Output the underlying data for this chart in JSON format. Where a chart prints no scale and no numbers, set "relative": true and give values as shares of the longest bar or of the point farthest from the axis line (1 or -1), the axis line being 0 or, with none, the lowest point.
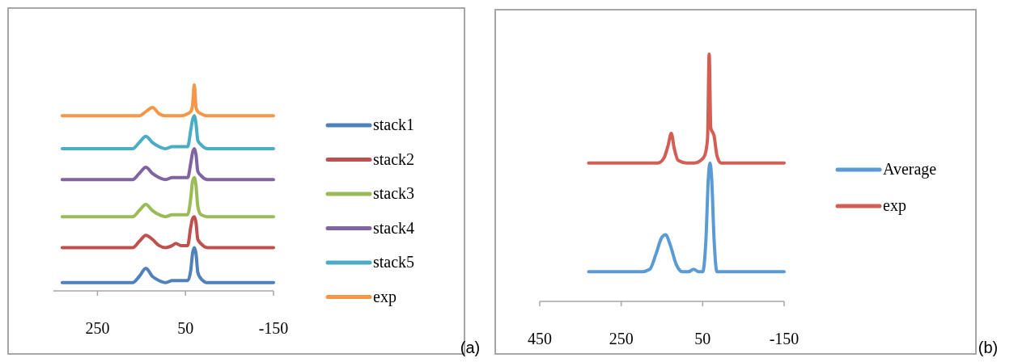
{
  "chart_data": [
    {
      "type": "line",
      "relative": true,
      "x": [
        330,
        200,
        170,
        155,
        140,
        125,
        110,
        95,
        80,
        72,
        60,
        45,
        38,
        34,
        30,
        26,
        22,
        15,
        0,
        -150
      ],
      "xlim": [
        350,
        -150
      ],
      "xticks": [
        250,
        50,
        -150
      ],
      "legend": "right",
      "annotations": [
        "(a)"
      ],
      "series": [
        {
          "name": "stack1",
          "color": "#4f81bd",
          "values": [
            0.04,
            0.04,
            0.04,
            0.07,
            0.11,
            0.07,
            0.05,
            0.04,
            0.05,
            0.05,
            0.05,
            0.05,
            0.1,
            0.18,
            0.21,
            0.18,
            0.09,
            0.06,
            0.04,
            0.04
          ]
        },
        {
          "name": "stack2",
          "color": "#c0504d",
          "values": [
            0.21,
            0.21,
            0.21,
            0.24,
            0.27,
            0.25,
            0.22,
            0.21,
            0.22,
            0.23,
            0.22,
            0.22,
            0.31,
            0.35,
            0.36,
            0.33,
            0.25,
            0.23,
            0.21,
            0.21
          ]
        },
        {
          "name": "stack3",
          "color": "#9bbb59",
          "values": [
            0.36,
            0.36,
            0.36,
            0.39,
            0.42,
            0.39,
            0.37,
            0.36,
            0.37,
            0.37,
            0.37,
            0.37,
            0.45,
            0.53,
            0.55,
            0.51,
            0.41,
            0.37,
            0.36,
            0.36
          ]
        },
        {
          "name": "stack4",
          "color": "#8064a2",
          "values": [
            0.54,
            0.54,
            0.54,
            0.57,
            0.6,
            0.57,
            0.55,
            0.54,
            0.55,
            0.55,
            0.55,
            0.55,
            0.62,
            0.67,
            0.69,
            0.66,
            0.58,
            0.56,
            0.54,
            0.54
          ]
        },
        {
          "name": "stack5",
          "color": "#4bacc6",
          "values": [
            0.69,
            0.69,
            0.69,
            0.72,
            0.75,
            0.72,
            0.7,
            0.69,
            0.7,
            0.7,
            0.7,
            0.7,
            0.78,
            0.83,
            0.85,
            0.81,
            0.73,
            0.71,
            0.69,
            0.69
          ]
        },
        {
          "name": "exp",
          "color": "#f79646",
          "values": [
            0.85,
            0.85,
            0.85,
            0.85,
            0.87,
            0.89,
            0.86,
            0.85,
            0.85,
            0.85,
            0.85,
            0.86,
            0.87,
            0.9,
            1,
            0.89,
            0.87,
            0.86,
            0.85,
            0.85
          ]
        }
      ]
    },
    {
      "type": "line",
      "relative": true,
      "xlim": [
        450,
        -150
      ],
      "xticks": [
        450,
        250,
        50,
        -150
      ],
      "legend": "right",
      "annotations": [
        "(b)"
      ],
      "series": [
        {
          "name": "Average",
          "color": "#5b9bd5",
          "x": [
            330,
            200,
            180,
            165,
            150,
            141,
            130,
            115,
            100,
            85,
            72,
            60,
            50,
            42,
            36,
            32,
            28,
            22,
            15,
            0,
            -150
          ],
          "values": [
            0.12,
            0.12,
            0.13,
            0.19,
            0.26,
            0.27,
            0.23,
            0.15,
            0.12,
            0.12,
            0.13,
            0.12,
            0.12,
            0.25,
            0.5,
            0.56,
            0.5,
            0.25,
            0.12,
            0.12,
            0.12
          ]
        },
        {
          "name": "exp",
          "color": "#d35e54",
          "x": [
            330,
            200,
            160,
            145,
            135,
            127,
            120,
            110,
            90,
            70,
            55,
            45,
            38,
            34,
            30,
            22,
            15,
            5,
            -150
          ],
          "values": [
            0.56,
            0.56,
            0.56,
            0.58,
            0.63,
            0.68,
            0.62,
            0.57,
            0.56,
            0.56,
            0.57,
            0.59,
            0.66,
            1,
            0.7,
            0.67,
            0.59,
            0.56,
            0.56
          ]
        }
      ]
    }
  ]
}
